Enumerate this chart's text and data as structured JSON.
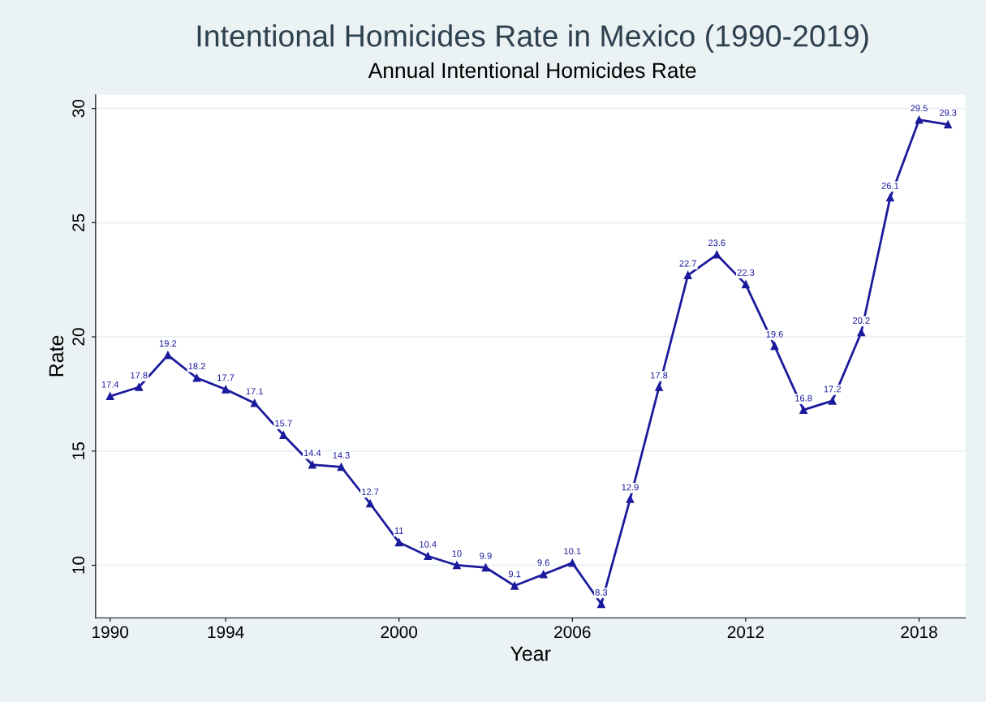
{
  "chart_data": {
    "type": "line",
    "title": "Intentional Homicides Rate in Mexico (1990-2019)",
    "subtitle": "Annual Intentional Homicides Rate",
    "xlabel": "Year",
    "ylabel": "Rate",
    "x": [
      1990,
      1991,
      1992,
      1993,
      1994,
      1995,
      1996,
      1997,
      1998,
      1999,
      2000,
      2001,
      2002,
      2003,
      2004,
      2005,
      2006,
      2007,
      2008,
      2009,
      2010,
      2011,
      2012,
      2013,
      2014,
      2015,
      2016,
      2017,
      2018,
      2019
    ],
    "series": [
      {
        "color": "#1a1a9c",
        "values": [
          17.4,
          17.8,
          19.2,
          18.2,
          17.7,
          17.1,
          15.7,
          14.4,
          14.3,
          12.7,
          11,
          10.4,
          10,
          9.9,
          9.1,
          9.6,
          10.1,
          8.3,
          12.9,
          17.8,
          22.7,
          23.6,
          22.3,
          19.6,
          16.8,
          17.2,
          20.2,
          26.1,
          29.5,
          29.3
        ]
      }
    ],
    "xlim": [
      1989.5,
      2019.6
    ],
    "xticks": [
      1990,
      1994,
      2000,
      2006,
      2012,
      2018
    ],
    "ylim": [
      7.7,
      30.6
    ],
    "yticks": [
      10,
      15,
      20,
      25,
      30
    ],
    "grid": "y",
    "marker": "triangle",
    "line_style": "solid",
    "data_labels": true
  }
}
